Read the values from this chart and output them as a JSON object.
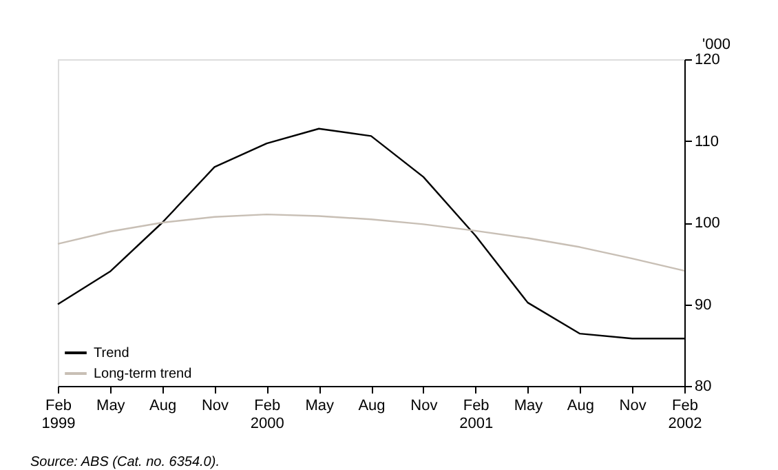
{
  "chart_data": {
    "type": "line",
    "categories": [
      "Feb 1999",
      "May",
      "Aug",
      "Nov",
      "Feb 2000",
      "May",
      "Aug",
      "Nov",
      "Feb 2001",
      "May",
      "Aug",
      "Nov",
      "Feb 2002"
    ],
    "series": [
      {
        "name": "Trend",
        "color": "#000000",
        "values": [
          90.0,
          94.0,
          100.0,
          106.8,
          109.7,
          111.5,
          110.6,
          105.6,
          98.4,
          90.2,
          86.4,
          85.8,
          85.8
        ]
      },
      {
        "name": "Long-term trend",
        "color": "#c8bfb5",
        "values": [
          97.4,
          98.9,
          100.0,
          100.7,
          101.0,
          100.8,
          100.4,
          99.8,
          99.0,
          98.1,
          97.0,
          95.6,
          94.1
        ]
      }
    ],
    "ylabel": "'000",
    "ylim": [
      80,
      120
    ],
    "yticks": [
      80,
      90,
      100,
      110,
      120
    ],
    "grid": false,
    "legend": "bottom left",
    "marker": "none",
    "line_style": "solid",
    "annotations": [
      "Source: ABS (Cat. no. 6354.0)."
    ]
  }
}
